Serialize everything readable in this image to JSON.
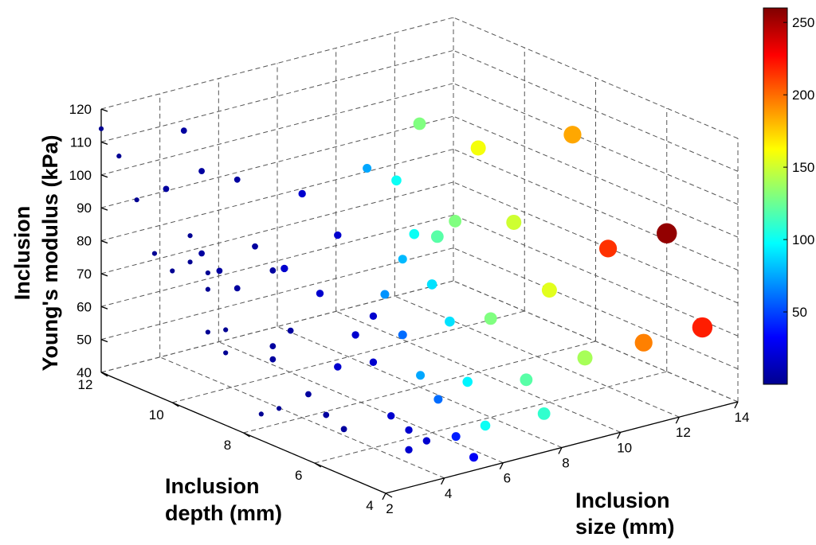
{
  "chart_data": {
    "type": "scatter",
    "dimensions": 3,
    "title": "",
    "xlabel": "Inclusion size (mm)",
    "ylabel": "Inclusion depth (mm)",
    "zlabel": [
      "Inclusion",
      "Young's modulus (kPa)"
    ],
    "xlim": [
      2,
      14
    ],
    "ylim": [
      4,
      12
    ],
    "zlim": [
      40,
      120
    ],
    "xticks": [
      "2",
      "4",
      "6",
      "8",
      "10",
      "12",
      "14"
    ],
    "yticks": [
      "4",
      "6",
      "8",
      "10",
      "12"
    ],
    "zticks": [
      "40",
      "50",
      "60",
      "70",
      "80",
      "90",
      "100",
      "110",
      "120"
    ],
    "grid": true,
    "colormap": "jet",
    "colorbar": {
      "range": [
        0,
        260
      ],
      "ticks": [
        "50",
        "100",
        "150",
        "200",
        "250"
      ]
    },
    "marker_size_encodes": "Inclusion size (mm)",
    "marker_color_encodes": "value shown on colorbar",
    "points": [
      {
        "x": 2,
        "y": 10,
        "z": 80,
        "c": 5
      },
      {
        "x": 2,
        "y": 9,
        "z": 79,
        "c": 5
      },
      {
        "x": 2,
        "y": 8.5,
        "z": 69,
        "c": 5
      },
      {
        "x": 2,
        "y": 7,
        "z": 52,
        "c": 5
      },
      {
        "x": 2,
        "y": 7.5,
        "z": 48,
        "c": 5
      },
      {
        "x": 2,
        "y": 8.5,
        "z": 62,
        "c": 5
      },
      {
        "x": 2,
        "y": 9.5,
        "z": 85,
        "c": 5
      },
      {
        "x": 2,
        "y": 10.5,
        "z": 83,
        "c": 5
      },
      {
        "x": 2,
        "y": 9,
        "z": 66,
        "c": 5
      },
      {
        "x": 2,
        "y": 9.5,
        "z": 93,
        "c": 5
      },
      {
        "x": 2,
        "y": 11.5,
        "z": 108,
        "c": 5
      },
      {
        "x": 2,
        "y": 12,
        "z": 114,
        "c": 5
      },
      {
        "x": 2,
        "y": 11,
        "z": 97,
        "c": 5
      },
      {
        "x": 2,
        "y": 9,
        "z": 84,
        "c": 5
      },
      {
        "x": 3,
        "y": 8,
        "z": 87,
        "c": 8
      },
      {
        "x": 3,
        "y": 10,
        "z": 83,
        "c": 8
      },
      {
        "x": 3,
        "y": 11,
        "z": 98,
        "c": 8
      },
      {
        "x": 3,
        "y": 10,
        "z": 108,
        "c": 8
      },
      {
        "x": 3,
        "y": 9,
        "z": 77,
        "c": 8
      },
      {
        "x": 3,
        "y": 8,
        "z": 64,
        "c": 8
      },
      {
        "x": 3,
        "y": 7,
        "z": 54,
        "c": 8
      },
      {
        "x": 3,
        "y": 6,
        "z": 48,
        "c": 8
      },
      {
        "x": 3,
        "y": 8.5,
        "z": 92,
        "c": 8
      },
      {
        "x": 3,
        "y": 9.5,
        "z": 80,
        "c": 8
      },
      {
        "x": 3,
        "y": 7.5,
        "z": 71,
        "c": 8
      },
      {
        "x": 3,
        "y": 10.5,
        "z": 118,
        "c": 8
      },
      {
        "x": 3,
        "y": 9,
        "z": 110,
        "c": 8
      },
      {
        "x": 3,
        "y": 8,
        "z": 60,
        "c": 8
      },
      {
        "x": 3,
        "y": 6.5,
        "z": 50,
        "c": 8
      },
      {
        "x": 4,
        "y": 6,
        "z": 66,
        "c": 20
      },
      {
        "x": 4,
        "y": 5,
        "z": 50,
        "c": 20
      },
      {
        "x": 4,
        "y": 5.5,
        "z": 52,
        "c": 20
      },
      {
        "x": 4,
        "y": 7,
        "z": 100,
        "c": 20
      },
      {
        "x": 4,
        "y": 6,
        "z": 80,
        "c": 20
      },
      {
        "x": 4,
        "y": 7.5,
        "z": 80,
        "c": 20
      },
      {
        "x": 4,
        "y": 8,
        "z": 108,
        "c": 20
      },
      {
        "x": 4,
        "y": 6.5,
        "z": 72,
        "c": 20
      },
      {
        "x": 4,
        "y": 5,
        "z": 44,
        "c": 20
      },
      {
        "x": 4,
        "y": 4.5,
        "z": 49,
        "c": 20
      },
      {
        "x": 4,
        "y": 7,
        "z": 60,
        "c": 20
      },
      {
        "x": 4,
        "y": 8.5,
        "z": 83,
        "c": 20
      },
      {
        "x": 5,
        "y": 7,
        "z": 118,
        "c": 75
      },
      {
        "x": 5,
        "y": 6,
        "z": 95,
        "c": 80
      },
      {
        "x": 5,
        "y": 6.5,
        "z": 82,
        "c": 70
      },
      {
        "x": 5,
        "y": 5.5,
        "z": 62,
        "c": 75
      },
      {
        "x": 5,
        "y": 4.5,
        "z": 48,
        "c": 40
      },
      {
        "x": 5,
        "y": 5,
        "z": 57,
        "c": 60
      },
      {
        "x": 5,
        "y": 4,
        "z": 44,
        "c": 30
      },
      {
        "x": 5,
        "y": 6,
        "z": 72,
        "c": 60
      },
      {
        "x": 6,
        "y": 7,
        "z": 112,
        "c": 100
      },
      {
        "x": 6,
        "y": 6.5,
        "z": 98,
        "c": 100
      },
      {
        "x": 6,
        "y": 5.5,
        "z": 76,
        "c": 90
      },
      {
        "x": 6,
        "y": 5,
        "z": 60,
        "c": 95
      },
      {
        "x": 6,
        "y": 4.5,
        "z": 49,
        "c": 100
      },
      {
        "x": 6,
        "y": 6,
        "z": 85,
        "c": 90
      },
      {
        "x": 8,
        "y": 8,
        "z": 120,
        "c": 130
      },
      {
        "x": 8,
        "y": 7,
        "z": 95,
        "c": 130
      },
      {
        "x": 8,
        "y": 6,
        "z": 70,
        "c": 130
      },
      {
        "x": 8,
        "y": 5,
        "z": 56,
        "c": 120
      },
      {
        "x": 8,
        "y": 4.5,
        "z": 48,
        "c": 110
      },
      {
        "x": 8,
        "y": 7.5,
        "z": 88,
        "c": 120
      },
      {
        "x": 10,
        "y": 8,
        "z": 108,
        "c": 160
      },
      {
        "x": 10,
        "y": 7,
        "z": 90,
        "c": 150
      },
      {
        "x": 10,
        "y": 6,
        "z": 74,
        "c": 155
      },
      {
        "x": 10,
        "y": 5,
        "z": 58,
        "c": 140
      },
      {
        "x": 12,
        "y": 7,
        "z": 112,
        "c": 185
      },
      {
        "x": 12,
        "y": 6,
        "z": 82,
        "c": 215
      },
      {
        "x": 12,
        "y": 5,
        "z": 58,
        "c": 195
      },
      {
        "x": 14,
        "y": 6,
        "z": 82,
        "c": 255
      },
      {
        "x": 14,
        "y": 5,
        "z": 58,
        "c": 220
      }
    ]
  }
}
